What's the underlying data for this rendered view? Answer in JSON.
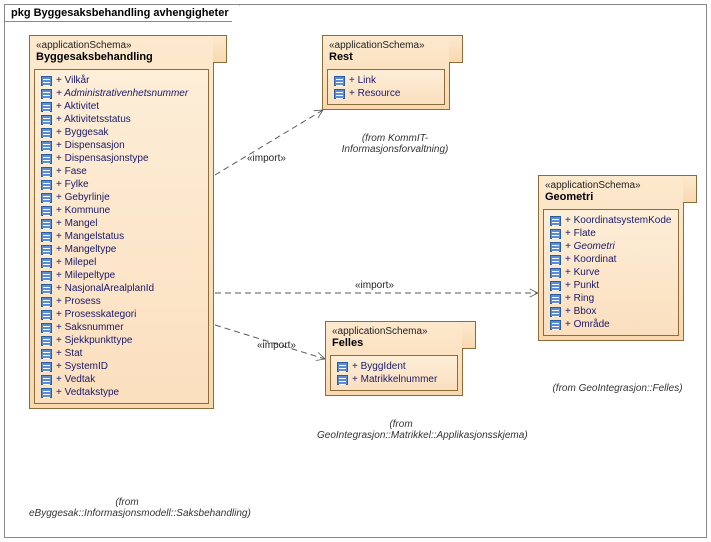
{
  "frame": {
    "title": "pkg Byggesaksbehandling avhengigheter"
  },
  "packages": {
    "byggesak": {
      "stereo": "«applicationSchema»",
      "title": "Byggesaksbehandling",
      "from": "(from eByggesak::Informasjonsmodell::Saksbehandling)",
      "attrs": [
        {
          "t": "+ Vilkår"
        },
        {
          "t": "+ Administrativenhetsnummer",
          "italic": true
        },
        {
          "t": "+ Aktivitet"
        },
        {
          "t": "+ Aktivitetsstatus"
        },
        {
          "t": "+ Byggesak"
        },
        {
          "t": "+ Dispensasjon"
        },
        {
          "t": "+ Dispensasjonstype"
        },
        {
          "t": "+ Fase"
        },
        {
          "t": "+ Fylke"
        },
        {
          "t": "+ Gebyrlinje"
        },
        {
          "t": "+ Kommune"
        },
        {
          "t": "+ Mangel"
        },
        {
          "t": "+ Mangelstatus"
        },
        {
          "t": "+ Mangeltype"
        },
        {
          "t": "+ Milepel"
        },
        {
          "t": "+ Milepeltype"
        },
        {
          "t": "+ NasjonalArealplanId"
        },
        {
          "t": "+ Prosess"
        },
        {
          "t": "+ Prosesskategori"
        },
        {
          "t": "+ Saksnummer"
        },
        {
          "t": "+ Sjekkpunkttype"
        },
        {
          "t": "+ Stat"
        },
        {
          "t": "+ SystemID"
        },
        {
          "t": "+ Vedtak"
        },
        {
          "t": "+ Vedtakstype"
        }
      ]
    },
    "rest": {
      "stereo": "«applicationSchema»",
      "title": "Rest",
      "from": "(from KommIT-Informasjonsforvaltning)",
      "attrs": [
        {
          "t": "+ Link"
        },
        {
          "t": "+ Resource"
        }
      ]
    },
    "felles": {
      "stereo": "«applicationSchema»",
      "title": "Felles",
      "from": "(from GeoIntegrasjon::Matrikkel::Applikasjonsskjema)",
      "attrs": [
        {
          "t": "+ ByggIdent"
        },
        {
          "t": "+ Matrikkelnummer"
        }
      ]
    },
    "geometri": {
      "stereo": "«applicationSchema»",
      "title": "Geometri",
      "from": "(from GeoIntegrasjon::Felles)",
      "attrs": [
        {
          "t": "+ KoordinatsystemKode"
        },
        {
          "t": "+ Flate"
        },
        {
          "t": "+ Geometri",
          "italic": true
        },
        {
          "t": "+ Koordinat"
        },
        {
          "t": "+ Kurve"
        },
        {
          "t": "+ Punkt"
        },
        {
          "t": "+ Ring"
        },
        {
          "t": "+ Bbox"
        },
        {
          "t": "+ Område"
        }
      ]
    }
  },
  "labels": {
    "import1": "«import»",
    "import2": "«import»",
    "import3": "«import»"
  },
  "colors": {
    "pkg_fill_top": "#fde9ce",
    "pkg_fill_bottom": "#f9d8b0",
    "pkg_border": "#8a6d3b",
    "attr_icon": "#5a8dd6",
    "edge": "#5a5a5a"
  }
}
